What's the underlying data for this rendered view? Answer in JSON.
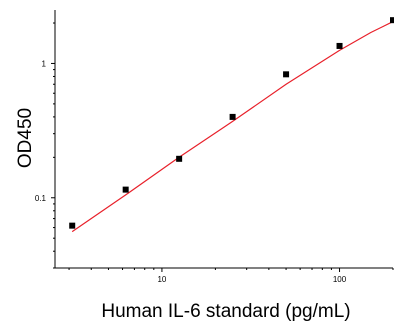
{
  "chart_data": {
    "type": "scatter",
    "xlabel": "Human IL-6 standard (pg/mL)",
    "ylabel": "OD450",
    "x_scale": "log",
    "y_scale": "log",
    "xlim": [
      2.5,
      200
    ],
    "ylim": [
      0.03,
      2.5
    ],
    "x_ticks": [
      {
        "value": 10,
        "label": "10"
      },
      {
        "value": 100,
        "label": "100"
      }
    ],
    "y_ticks": [
      {
        "value": 0.1,
        "label": "0.1"
      },
      {
        "value": 1,
        "label": "1"
      }
    ],
    "grid": false,
    "series": [
      {
        "marker_color": "#000000",
        "points": [
          {
            "x": 3.125,
            "y": 0.062
          },
          {
            "x": 6.25,
            "y": 0.115
          },
          {
            "x": 12.5,
            "y": 0.195
          },
          {
            "x": 25,
            "y": 0.4
          },
          {
            "x": 50,
            "y": 0.83
          },
          {
            "x": 100,
            "y": 1.35
          },
          {
            "x": 200,
            "y": 2.1
          }
        ],
        "fit_color": "#e8202a",
        "fit_curve": [
          {
            "x": 3.125,
            "y": 0.056
          },
          {
            "x": 6.25,
            "y": 0.105
          },
          {
            "x": 12.5,
            "y": 0.2
          },
          {
            "x": 25,
            "y": 0.37
          },
          {
            "x": 50,
            "y": 0.7
          },
          {
            "x": 100,
            "y": 1.25
          },
          {
            "x": 150,
            "y": 1.7
          },
          {
            "x": 200,
            "y": 2.05
          }
        ]
      }
    ]
  }
}
